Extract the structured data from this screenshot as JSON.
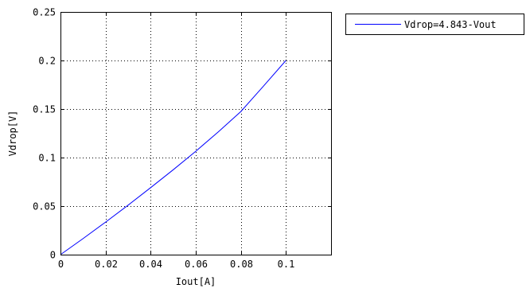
{
  "chart_data": {
    "type": "line",
    "xlabel": "Iout[A]",
    "ylabel": "Vdrop[V]",
    "xlim": [
      0,
      0.12
    ],
    "ylim": [
      0,
      0.25
    ],
    "xticks": [
      0,
      0.02,
      0.04,
      0.06,
      0.08,
      0.1
    ],
    "xtick_labels": [
      "0",
      "0.02",
      "0.04",
      "0.06",
      "0.08",
      "0.1"
    ],
    "yticks": [
      0,
      0.05,
      0.1,
      0.15,
      0.2,
      0.25
    ],
    "ytick_labels": [
      "0",
      "0.05",
      "0.1",
      "0.15",
      "0.2",
      "0.25"
    ],
    "grid": "dotted",
    "legend_position": "outside-top-right",
    "series": [
      {
        "name": "Vdrop=4.843-Vout",
        "color": "#0000ff",
        "x": [
          0,
          0.01,
          0.02,
          0.03,
          0.04,
          0.05,
          0.06,
          0.07,
          0.08,
          0.09,
          0.1
        ],
        "y": [
          0,
          0.0165,
          0.0335,
          0.051,
          0.069,
          0.0875,
          0.1065,
          0.1265,
          0.1475,
          0.1735,
          0.2
        ]
      }
    ]
  }
}
